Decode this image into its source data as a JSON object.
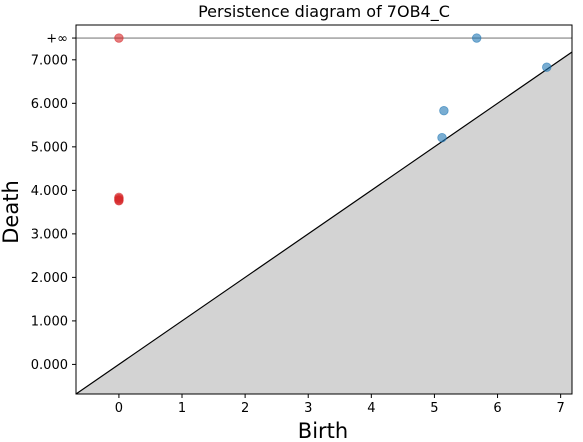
{
  "chart_data": {
    "type": "scatter",
    "title": "Persistence diagram of 7OB4_C",
    "xlabel": "Birth",
    "ylabel": "Death",
    "xlim": [
      -0.68,
      7.18
    ],
    "ylim": [
      -0.68,
      7.8
    ],
    "infinity_value": 7.5,
    "infinity_label": "+∞",
    "x_ticks": [
      0,
      1,
      2,
      3,
      4,
      5,
      6,
      7
    ],
    "x_tick_labels": [
      "0",
      "1",
      "2",
      "3",
      "4",
      "5",
      "6",
      "7"
    ],
    "y_ticks": [
      0,
      1,
      2,
      3,
      4,
      5,
      6,
      7
    ],
    "y_tick_labels": [
      "0.000",
      "1.000",
      "2.000",
      "3.000",
      "4.000",
      "5.000",
      "6.000",
      "7.000"
    ],
    "grid": false,
    "diagonal": true,
    "shade_below_diagonal": true,
    "series": [
      {
        "color": "#d62728",
        "points": [
          {
            "x": 0,
            "y": 7.5
          },
          {
            "x": 0,
            "y": 3.84
          },
          {
            "x": 0,
            "y": 3.81
          },
          {
            "x": 0,
            "y": 3.78
          },
          {
            "x": 0,
            "y": 3.76
          }
        ]
      },
      {
        "color": "#1f77b4",
        "points": [
          {
            "x": 5.67,
            "y": 7.5
          },
          {
            "x": 6.78,
            "y": 6.83
          },
          {
            "x": 5.15,
            "y": 5.83
          },
          {
            "x": 5.12,
            "y": 5.21
          }
        ]
      }
    ]
  }
}
